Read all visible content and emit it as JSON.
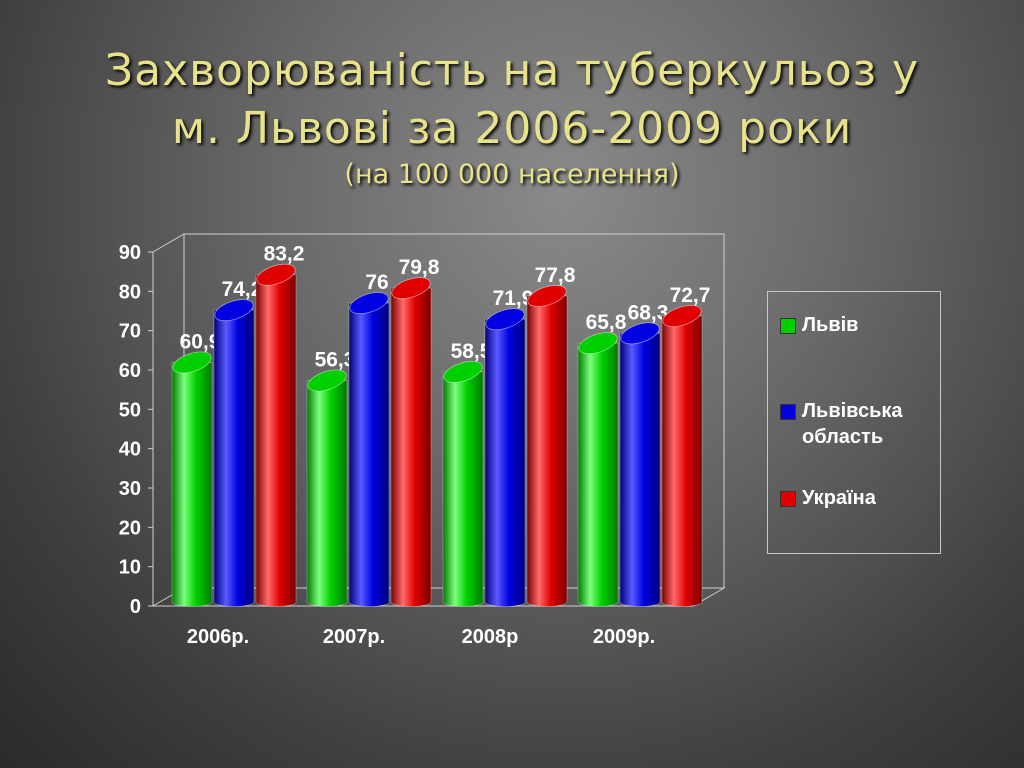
{
  "title": {
    "line1": "Захворюваність на туберкульоз у",
    "line2": "м. Львові за 2006-2009 роки",
    "subtitle": "(на 100 000 населення)"
  },
  "colors": {
    "lviv": "#00d000",
    "oblast": "#0000e0",
    "ukraine": "#e00000",
    "text": "#ffffff",
    "title": "#e8e38a"
  },
  "chart_data": {
    "type": "bar",
    "categories": [
      "2006р.",
      "2007р.",
      "2008р",
      "2009р."
    ],
    "series": [
      {
        "name": "Львів",
        "values": [
          60.9,
          56.3,
          58.5,
          65.8
        ],
        "labels": [
          "60,9",
          "56,3",
          "58,5",
          "65,8"
        ]
      },
      {
        "name": "Львівська область",
        "values": [
          74.2,
          76,
          71.9,
          68.3
        ],
        "labels": [
          "74,2",
          "76",
          "71,9",
          "68,3"
        ]
      },
      {
        "name": "Україна",
        "values": [
          83.2,
          79.8,
          77.8,
          72.7
        ],
        "labels": [
          "83,2",
          "79,8",
          "77,8",
          "72,7"
        ]
      }
    ],
    "ylim": [
      0,
      90
    ],
    "yticks": [
      "0",
      "10",
      "20",
      "30",
      "40",
      "50",
      "60",
      "70",
      "80",
      "90"
    ],
    "grid": false,
    "legend": "right",
    "style": "3d-cylinder"
  },
  "legend": {
    "items": [
      "Львів",
      "Львівська область",
      "Україна"
    ]
  }
}
